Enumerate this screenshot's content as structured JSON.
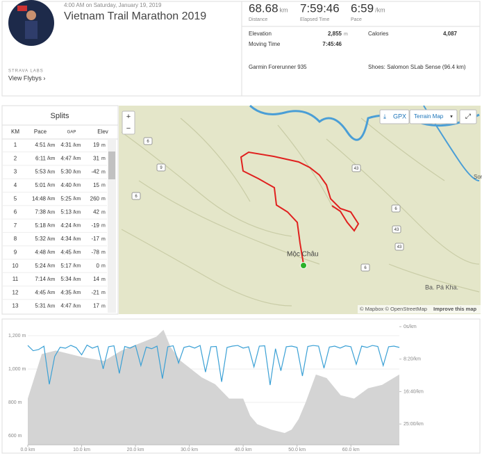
{
  "header": {
    "time": "4:00 AM on Saturday, January 19, 2019",
    "title": "Vietnam Trail Marathon 2019",
    "labs": "STRAVA LABS",
    "flyby": "View Flybys ›"
  },
  "stats": [
    {
      "value": "68.68",
      "unit": "km",
      "label": "Distance"
    },
    {
      "value": "7:59:46",
      "label": "Elapsed Time"
    },
    {
      "value": "6:59",
      "unit": "/km",
      "label": "Pace"
    }
  ],
  "details": {
    "elevation_label": "Elevation",
    "elevation": "2,855",
    "elevation_unit": "m",
    "calories_label": "Calories",
    "calories": "4,087",
    "moving_label": "Moving Time",
    "moving": "7:45:46",
    "device": "Garmin Forerunner 935",
    "shoes": "Shoes: Salomon SLab Sense (96.4 km)"
  },
  "splits": {
    "title": "Splits",
    "columns": [
      "KM",
      "Pace",
      "GAP",
      "Elev"
    ],
    "pace_unit": "/km",
    "elev_unit": "m",
    "rows": [
      [
        "1",
        "4:51",
        "4:31",
        "19"
      ],
      [
        "2",
        "6:11",
        "4:47",
        "31"
      ],
      [
        "3",
        "5:53",
        "5:30",
        "-42"
      ],
      [
        "4",
        "5:01",
        "4:40",
        "15"
      ],
      [
        "5",
        "14:48",
        "5:25",
        "260"
      ],
      [
        "6",
        "7:38",
        "5:13",
        "42"
      ],
      [
        "7",
        "5:18",
        "4:24",
        "-19"
      ],
      [
        "8",
        "5:32",
        "4:34",
        "-17"
      ],
      [
        "9",
        "4:48",
        "4:45",
        "-78"
      ],
      [
        "10",
        "5:24",
        "5:17",
        "0"
      ],
      [
        "11",
        "7:14",
        "5:34",
        "14"
      ],
      [
        "12",
        "4:45",
        "4:35",
        "-21"
      ],
      [
        "13",
        "5:31",
        "4:47",
        "17"
      ]
    ]
  },
  "map": {
    "gpx": "GPX",
    "layer": "Terrain Map",
    "town": "Mộc Châu",
    "village": "Ba. Pá Kha.",
    "edge": "Sor",
    "roads": [
      "6",
      "9",
      "43",
      "6",
      "6",
      "43",
      "43",
      "6"
    ],
    "attribution": "© Mapbox © OpenStreetMap",
    "improve": "Improve this map"
  },
  "chart": {
    "type": "area-line",
    "xlim": [
      0,
      69
    ],
    "ylim": [
      546,
      1254
    ],
    "y2lim": [
      0,
      1820
    ],
    "xticks": [
      {
        "value": 0,
        "label": "0.0 km"
      },
      {
        "value": 10,
        "label": "10.0 km"
      },
      {
        "value": 20,
        "label": "20.0 km"
      },
      {
        "value": 30,
        "label": "30.0 km"
      },
      {
        "value": 40,
        "label": "40.0 km"
      },
      {
        "value": 50,
        "label": "50.0 km"
      },
      {
        "value": 60,
        "label": "60.0 km"
      }
    ],
    "yticks": [
      {
        "value": 600,
        "label": "600 m"
      },
      {
        "value": 800,
        "label": "800 m"
      },
      {
        "value": 1000,
        "label": "1,000 m"
      },
      {
        "value": 1200,
        "label": "1,200 m"
      }
    ],
    "y2ticks": [
      {
        "value": 0,
        "label": "0s/km"
      },
      {
        "value": 500,
        "label": "8:20/km"
      },
      {
        "value": 1000,
        "label": "16:40/km"
      },
      {
        "value": 1500,
        "label": "25:00/km"
      }
    ],
    "elevation": {
      "color": "#d4d4d4",
      "x": [
        0,
        2.6,
        5.2,
        10.3,
        14.2,
        17.4,
        20.6,
        23.9,
        25.2,
        26.5,
        28.4,
        32.3,
        34.8,
        37.4,
        40,
        41.3,
        42.6,
        45.2,
        47.7,
        49,
        50.3,
        51.6,
        53.5,
        55.5,
        58.1,
        60.6,
        63.2,
        65.8,
        69
      ],
      "values": [
        823,
        1090,
        1111,
        1070,
        1049,
        1111,
        1152,
        1194,
        1235,
        1132,
        1049,
        950,
        909,
        823,
        823,
        720,
        670,
        637,
        617,
        637,
        700,
        800,
        967,
        946,
        843,
        823,
        885,
        905,
        967
      ]
    },
    "pace": {
      "color": "#3aa0d5",
      "x": [
        0,
        1,
        2,
        3,
        4,
        5,
        6,
        7,
        8,
        9,
        10,
        11,
        12,
        13,
        14,
        15,
        16,
        17,
        18,
        19,
        20,
        21,
        22,
        23,
        24,
        25,
        26,
        27,
        28,
        29,
        30,
        31,
        32,
        33,
        34,
        35,
        36,
        37,
        38,
        39,
        40,
        41,
        42,
        43,
        44,
        45,
        46,
        47,
        48,
        49,
        50,
        51,
        52,
        53,
        54,
        55,
        56,
        57,
        58,
        59,
        60,
        61,
        62,
        63,
        64,
        65,
        66,
        67,
        68,
        69
      ],
      "values": [
        290,
        371,
        353,
        301,
        888,
        458,
        318,
        332,
        288,
        324,
        434,
        285,
        331,
        300,
        650,
        310,
        295,
        720,
        305,
        330,
        290,
        600,
        315,
        340,
        300,
        800,
        310,
        295,
        560,
        320,
        300,
        330,
        290,
        700,
        310,
        305,
        850,
        320,
        300,
        290,
        330,
        310,
        620,
        300,
        295,
        900,
        340,
        680,
        310,
        300,
        320,
        760,
        305,
        290,
        300,
        640,
        315,
        300,
        330,
        295,
        310,
        580,
        300,
        320,
        290,
        305,
        600,
        310,
        300,
        320
      ]
    }
  }
}
